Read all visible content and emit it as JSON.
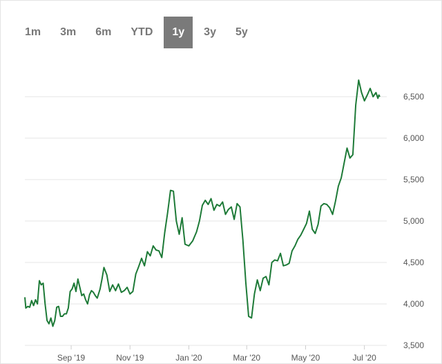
{
  "range_selector": {
    "options": [
      "1m",
      "3m",
      "6m",
      "YTD",
      "1y",
      "3y",
      "5y"
    ],
    "selected": "1y",
    "active_color": "#7a7a7a"
  },
  "chart_data": {
    "type": "line",
    "x_tick_labels": [
      "Sep '19",
      "Nov '19",
      "Jan '20",
      "Mar '20",
      "May '20",
      "Jul '20"
    ],
    "y_ticks": [
      3500,
      4000,
      4500,
      5000,
      5500,
      6000,
      6500
    ],
    "y_tick_labels": [
      "3,500",
      "4,000",
      "4,500",
      "5,000",
      "5,500",
      "6,000",
      "6,500"
    ],
    "x_range": [
      "2019-07-15",
      "2020-07-17"
    ],
    "ylim": [
      3500,
      7000
    ],
    "grid": "horizontal",
    "line_color": "#1d7a37",
    "series": [
      {
        "x": [
          "2019-07-15",
          "2019-07-16",
          "2019-07-18",
          "2019-07-20",
          "2019-07-22",
          "2019-07-24",
          "2019-07-26",
          "2019-07-28",
          "2019-07-30",
          "2019-08-01",
          "2019-08-03",
          "2019-08-05",
          "2019-08-07",
          "2019-08-09",
          "2019-08-11",
          "2019-08-13",
          "2019-08-15",
          "2019-08-17",
          "2019-08-19",
          "2019-08-21",
          "2019-08-23",
          "2019-08-25",
          "2019-08-27",
          "2019-08-29",
          "2019-08-31",
          "2019-09-02",
          "2019-09-04",
          "2019-09-06",
          "2019-09-08",
          "2019-09-10",
          "2019-09-12",
          "2019-09-14",
          "2019-09-16",
          "2019-09-18",
          "2019-09-20",
          "2019-09-22",
          "2019-09-24",
          "2019-09-26",
          "2019-09-28",
          "2019-10-01",
          "2019-10-03",
          "2019-10-05",
          "2019-10-08",
          "2019-10-11",
          "2019-10-14",
          "2019-10-17",
          "2019-10-20",
          "2019-10-23",
          "2019-10-26",
          "2019-10-29",
          "2019-11-01",
          "2019-11-04",
          "2019-11-07",
          "2019-11-10",
          "2019-11-13",
          "2019-11-16",
          "2019-11-19",
          "2019-11-22",
          "2019-11-25",
          "2019-11-28",
          "2019-12-01",
          "2019-12-04",
          "2019-12-07",
          "2019-12-10",
          "2019-12-13",
          "2019-12-16",
          "2019-12-19",
          "2019-12-22",
          "2019-12-25",
          "2019-12-28",
          "2020-01-01",
          "2020-01-05",
          "2020-01-09",
          "2020-01-12",
          "2020-01-15",
          "2020-01-18",
          "2020-01-21",
          "2020-01-24",
          "2020-01-27",
          "2020-01-30",
          "2020-02-02",
          "2020-02-05",
          "2020-02-08",
          "2020-02-11",
          "2020-02-14",
          "2020-02-17",
          "2020-02-20",
          "2020-02-23",
          "2020-02-26",
          "2020-02-29",
          "2020-03-03",
          "2020-03-06",
          "2020-03-09",
          "2020-03-12",
          "2020-03-15",
          "2020-03-18",
          "2020-03-21",
          "2020-03-24",
          "2020-03-27",
          "2020-03-30",
          "2020-04-02",
          "2020-04-05",
          "2020-04-08",
          "2020-04-11",
          "2020-04-14",
          "2020-04-17",
          "2020-04-20",
          "2020-04-23",
          "2020-04-26",
          "2020-04-29",
          "2020-05-02",
          "2020-05-05",
          "2020-05-08",
          "2020-05-11",
          "2020-05-14",
          "2020-05-17",
          "2020-05-20",
          "2020-05-23",
          "2020-05-26",
          "2020-05-29",
          "2020-06-01",
          "2020-06-04",
          "2020-06-07",
          "2020-06-10",
          "2020-06-13",
          "2020-06-16",
          "2020-06-19",
          "2020-06-22",
          "2020-06-25",
          "2020-06-28",
          "2020-07-01",
          "2020-07-04",
          "2020-07-07",
          "2020-07-10",
          "2020-07-13",
          "2020-07-15",
          "2020-07-16",
          "2020-07-17"
        ],
        "values": [
          4080,
          3950,
          3970,
          3960,
          4040,
          3980,
          4050,
          4000,
          4280,
          4230,
          4250,
          4000,
          3800,
          3760,
          3830,
          3730,
          3800,
          3960,
          3970,
          3850,
          3850,
          3880,
          3880,
          3950,
          4150,
          4180,
          4250,
          4150,
          4300,
          4200,
          4100,
          4120,
          4050,
          4000,
          4110,
          4160,
          4140,
          4100,
          4070,
          4180,
          4300,
          4440,
          4350,
          4150,
          4230,
          4160,
          4240,
          4140,
          4160,
          4200,
          4120,
          4150,
          4360,
          4450,
          4550,
          4460,
          4630,
          4580,
          4700,
          4650,
          4640,
          4560,
          4860,
          5100,
          5370,
          5360,
          5000,
          4840,
          5040,
          4720,
          4700,
          4760,
          4870,
          5000,
          5190,
          5250,
          5200,
          5270,
          5130,
          5200,
          5180,
          5230,
          5080,
          5140,
          5170,
          5020,
          5210,
          5170,
          4770,
          4260,
          3850,
          3830,
          4120,
          4290,
          4160,
          4310,
          4330,
          4230,
          4500,
          4530,
          4520,
          4610,
          4460,
          4470,
          4490,
          4640,
          4700,
          4780,
          4830,
          4900,
          4970,
          5120,
          4900,
          4850,
          4960,
          5180,
          5210,
          5200,
          5160,
          5080,
          5240,
          5420,
          5520,
          5700,
          5880,
          5760,
          5800,
          6400,
          6700,
          6550,
          6450,
          6520,
          6600,
          6500,
          6550,
          6480,
          6520,
          6500
        ],
        "name": ""
      }
    ]
  }
}
